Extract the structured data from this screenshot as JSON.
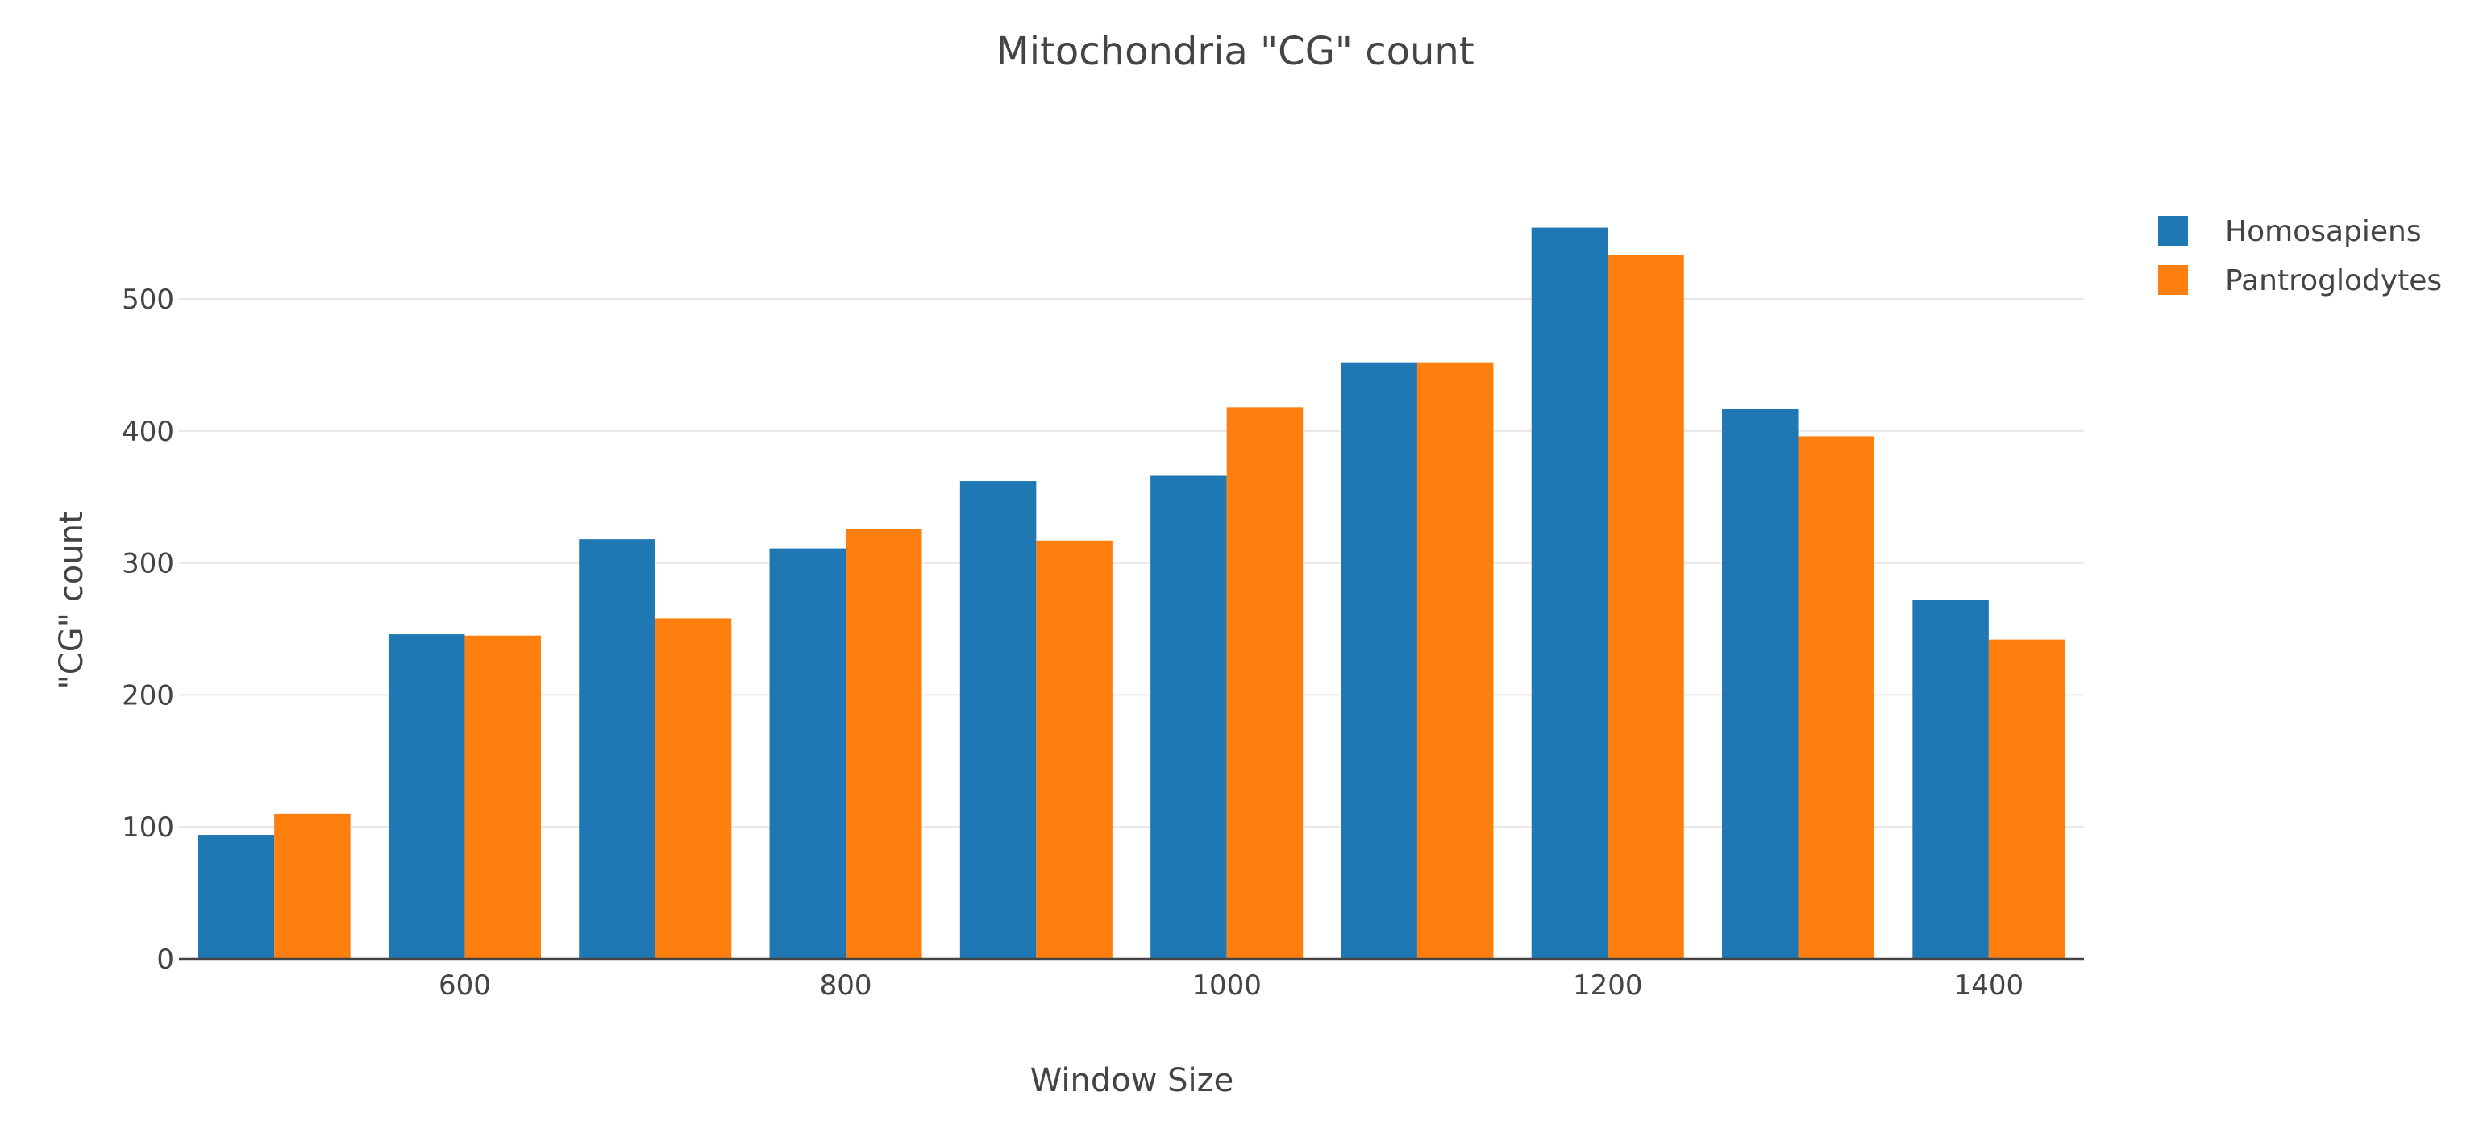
{
  "chart_data": {
    "type": "bar",
    "title": "Mitochondria \"CG\" count",
    "xlabel": "Window Size",
    "ylabel": "\"CG\" count",
    "x": [
      500,
      600,
      700,
      800,
      900,
      1000,
      1100,
      1200,
      1300,
      1400
    ],
    "x_ticks": [
      600,
      800,
      1000,
      1200,
      1400
    ],
    "x_tick_labels": [
      "600",
      "800",
      "1000",
      "1200",
      "1400"
    ],
    "xlim": [
      450,
      1450
    ],
    "y_ticks": [
      0,
      100,
      200,
      300,
      400,
      500
    ],
    "y_tick_labels": [
      "0",
      "100",
      "200",
      "300",
      "400",
      "500"
    ],
    "ylim": [
      0,
      580
    ],
    "grid": true,
    "barmode": "group",
    "legend_position": "top-right",
    "series": [
      {
        "name": "Homosapiens",
        "color": "#1f77b4",
        "values": [
          94,
          246,
          318,
          311,
          362,
          366,
          452,
          554,
          417,
          272
        ]
      },
      {
        "name": "Pantroglodytes",
        "color": "#ff7f0e",
        "values": [
          110,
          245,
          258,
          326,
          317,
          418,
          452,
          533,
          396,
          242
        ]
      }
    ]
  }
}
